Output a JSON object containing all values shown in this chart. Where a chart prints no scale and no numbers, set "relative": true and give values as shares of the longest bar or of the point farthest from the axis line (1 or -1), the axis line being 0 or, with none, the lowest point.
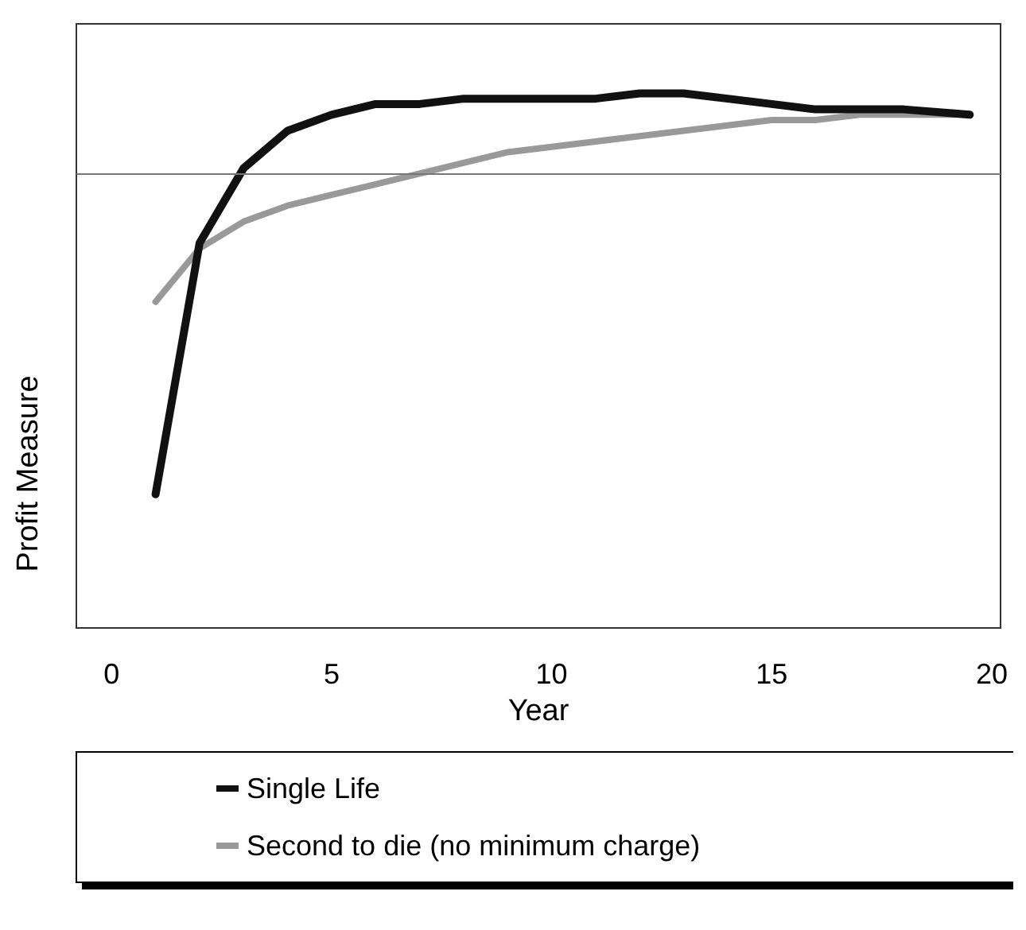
{
  "chart_data": {
    "type": "line",
    "relative": true,
    "xlabel": "Year",
    "ylabel": "Profit Measure",
    "x": [
      1,
      2,
      3,
      4,
      5,
      6,
      7,
      8,
      9,
      10,
      11,
      12,
      13,
      14,
      15,
      16,
      17,
      18,
      19.5
    ],
    "xlim": [
      -0.8,
      20.2
    ],
    "xticks": [
      0,
      5,
      10,
      15,
      20
    ],
    "series": [
      {
        "name": "Single Life",
        "color": "#111111",
        "values": [
          0.25,
          0.72,
          0.86,
          0.93,
          0.96,
          0.98,
          0.98,
          0.99,
          0.99,
          0.99,
          0.99,
          1.0,
          1.0,
          0.99,
          0.98,
          0.97,
          0.97,
          0.97,
          0.96
        ]
      },
      {
        "name": "Second to die (no minimum charge)",
        "color": "#999999",
        "values": [
          0.61,
          0.71,
          0.76,
          0.79,
          0.81,
          0.83,
          0.85,
          0.87,
          0.89,
          0.9,
          0.91,
          0.92,
          0.93,
          0.94,
          0.95,
          0.95,
          0.96,
          0.96,
          0.96
        ]
      }
    ],
    "ref_lines": [
      {
        "axis": "y",
        "value": 0.85,
        "color": "#777777"
      }
    ],
    "legend": "bottom",
    "grid": false,
    "marker": "none",
    "line_style": "solid"
  }
}
